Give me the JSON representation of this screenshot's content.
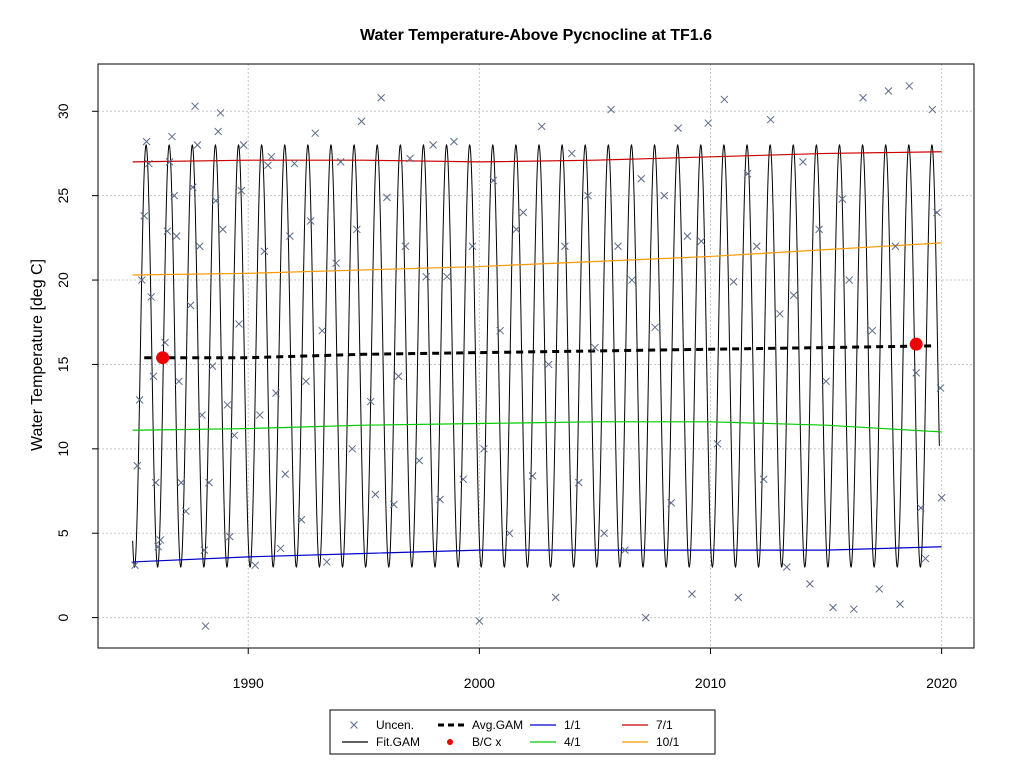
{
  "chart_data": {
    "type": "line",
    "title": "Water Temperature-Above Pycnocline at TF1.6",
    "xlabel": "",
    "ylabel": "Water Temperature [deg C]",
    "xlim": [
      1983.5,
      2021.4
    ],
    "ylim": [
      -1.8,
      32.8
    ],
    "x_ticks": [
      1990,
      2000,
      2010,
      2020
    ],
    "y_ticks": [
      0,
      5,
      10,
      15,
      20,
      25,
      30
    ],
    "grid": true,
    "legend_position": "bottom",
    "legend": [
      {
        "label": "Uncen.",
        "symbol": "cross",
        "color": "#5a6a8a"
      },
      {
        "label": "Fit.GAM",
        "symbol": "line",
        "color": "#000000"
      },
      {
        "label": "Avg.GAM",
        "symbol": "dashed-line",
        "color": "#000000"
      },
      {
        "label": "B/C x",
        "symbol": "dot",
        "color": "#ee0000"
      },
      {
        "label": "1/1",
        "symbol": "line",
        "color": "#0000cc"
      },
      {
        "label": "4/1",
        "symbol": "line",
        "color": "#00cc00"
      },
      {
        "label": "7/1",
        "symbol": "line",
        "color": "#cc0000"
      },
      {
        "label": "10/1",
        "symbol": "line",
        "color": "#ff9900"
      }
    ],
    "fit_gam": {
      "name": "Fit.GAM",
      "start_year": 1985.0,
      "end_year": 2019.9,
      "annual_max": 28.0,
      "annual_min": 3.0,
      "color": "#000000"
    },
    "series": [
      {
        "name": "1/1",
        "color": "#0000cc",
        "x": [
          1985.0,
          1990.0,
          1995.0,
          2000.0,
          2005.0,
          2010.0,
          2015.0,
          2020.0
        ],
        "values": [
          3.3,
          3.6,
          3.8,
          4.0,
          4.0,
          4.0,
          4.0,
          4.2
        ]
      },
      {
        "name": "4/1",
        "color": "#00cc00",
        "x": [
          1985.0,
          1990.0,
          1995.0,
          2000.0,
          2005.0,
          2010.0,
          2015.0,
          2020.0
        ],
        "values": [
          11.1,
          11.2,
          11.4,
          11.5,
          11.6,
          11.6,
          11.4,
          11.0
        ]
      },
      {
        "name": "7/1",
        "color": "#cc0000",
        "x": [
          1985.0,
          1990.0,
          1995.0,
          2000.0,
          2005.0,
          2010.0,
          2015.0,
          2020.0
        ],
        "values": [
          27.0,
          27.1,
          27.1,
          27.0,
          27.1,
          27.3,
          27.5,
          27.6
        ]
      },
      {
        "name": "10/1",
        "color": "#ff9900",
        "x": [
          1985.0,
          1990.0,
          1995.0,
          2000.0,
          2005.0,
          2010.0,
          2015.0,
          2020.0
        ],
        "values": [
          20.3,
          20.4,
          20.6,
          20.8,
          21.1,
          21.4,
          21.8,
          22.2
        ]
      },
      {
        "name": "Avg.GAM",
        "color": "#000000",
        "dashed": true,
        "x": [
          1985.5,
          1990.0,
          1995.0,
          2000.0,
          2005.0,
          2010.0,
          2015.0,
          2019.7
        ],
        "values": [
          15.4,
          15.4,
          15.6,
          15.7,
          15.8,
          15.9,
          16.0,
          16.1
        ]
      }
    ],
    "bc_points": [
      {
        "x": 1986.3,
        "y": 15.4
      },
      {
        "x": 2018.9,
        "y": 16.2
      }
    ],
    "uncensored_points": [
      [
        1985.1,
        3.1
      ],
      [
        1985.2,
        9.0
      ],
      [
        1985.3,
        12.9
      ],
      [
        1985.4,
        20.0
      ],
      [
        1985.5,
        23.8
      ],
      [
        1985.6,
        28.2
      ],
      [
        1985.7,
        26.9
      ],
      [
        1985.8,
        19.0
      ],
      [
        1985.9,
        14.3
      ],
      [
        1986.0,
        8.0
      ],
      [
        1986.1,
        4.2
      ],
      [
        1986.2,
        4.6
      ],
      [
        1986.4,
        16.3
      ],
      [
        1986.5,
        22.9
      ],
      [
        1986.6,
        27.0
      ],
      [
        1986.7,
        28.5
      ],
      [
        1986.8,
        25.0
      ],
      [
        1986.9,
        22.6
      ],
      [
        1987.0,
        14.0
      ],
      [
        1987.1,
        8.0
      ],
      [
        1987.3,
        6.3
      ],
      [
        1987.5,
        18.5
      ],
      [
        1987.6,
        25.5
      ],
      [
        1987.7,
        30.3
      ],
      [
        1987.8,
        28.0
      ],
      [
        1987.9,
        22.0
      ],
      [
        1988.0,
        12.0
      ],
      [
        1988.1,
        4.0
      ],
      [
        1988.15,
        -0.5
      ],
      [
        1988.3,
        8.0
      ],
      [
        1988.45,
        14.9
      ],
      [
        1988.6,
        24.7
      ],
      [
        1988.7,
        28.8
      ],
      [
        1988.8,
        29.9
      ],
      [
        1988.9,
        23.0
      ],
      [
        1989.1,
        12.6
      ],
      [
        1989.2,
        4.8
      ],
      [
        1989.4,
        10.8
      ],
      [
        1989.6,
        17.4
      ],
      [
        1989.7,
        25.3
      ],
      [
        1989.8,
        28.0
      ],
      [
        1990.3,
        3.1
      ],
      [
        1990.5,
        12.0
      ],
      [
        1990.7,
        21.7
      ],
      [
        1990.85,
        26.8
      ],
      [
        1991.0,
        27.3
      ],
      [
        1991.2,
        13.3
      ],
      [
        1991.4,
        4.1
      ],
      [
        1991.6,
        8.5
      ],
      [
        1991.8,
        22.6
      ],
      [
        1992.0,
        26.9
      ],
      [
        1992.3,
        5.8
      ],
      [
        1992.5,
        14.0
      ],
      [
        1992.7,
        23.5
      ],
      [
        1992.9,
        28.7
      ],
      [
        1993.2,
        17.0
      ],
      [
        1993.4,
        3.3
      ],
      [
        1993.8,
        21.0
      ],
      [
        1994.0,
        27.0
      ],
      [
        1994.5,
        10.0
      ],
      [
        1994.7,
        23.0
      ],
      [
        1994.9,
        29.4
      ],
      [
        1995.3,
        12.8
      ],
      [
        1995.5,
        7.3
      ],
      [
        1995.75,
        30.8
      ],
      [
        1996.0,
        24.9
      ],
      [
        1996.3,
        6.7
      ],
      [
        1996.5,
        14.3
      ],
      [
        1996.8,
        22.0
      ],
      [
        1997.0,
        27.2
      ],
      [
        1997.4,
        9.3
      ],
      [
        1997.7,
        20.2
      ],
      [
        1998.0,
        28.0
      ],
      [
        1998.3,
        7.0
      ],
      [
        1998.6,
        20.2
      ],
      [
        1998.9,
        28.2
      ],
      [
        1999.3,
        8.2
      ],
      [
        1999.7,
        22.0
      ],
      [
        2000.0,
        -0.2
      ],
      [
        2000.2,
        10.0
      ],
      [
        2000.6,
        25.9
      ],
      [
        2000.9,
        17.0
      ],
      [
        2001.3,
        5.0
      ],
      [
        2001.6,
        23.0
      ],
      [
        2001.9,
        24.0
      ],
      [
        2002.3,
        8.4
      ],
      [
        2002.7,
        29.1
      ],
      [
        2003.0,
        15.0
      ],
      [
        2003.3,
        1.2
      ],
      [
        2003.7,
        22.0
      ],
      [
        2004.0,
        27.5
      ],
      [
        2004.3,
        8.0
      ],
      [
        2004.7,
        25.0
      ],
      [
        2005.0,
        16.0
      ],
      [
        2005.4,
        5.0
      ],
      [
        2005.7,
        30.1
      ],
      [
        2006.0,
        22.0
      ],
      [
        2006.3,
        4.0
      ],
      [
        2006.6,
        20.0
      ],
      [
        2007.0,
        26.0
      ],
      [
        2007.2,
        0.0
      ],
      [
        2007.6,
        17.2
      ],
      [
        2008.0,
        25.0
      ],
      [
        2008.3,
        6.8
      ],
      [
        2008.6,
        29.0
      ],
      [
        2009.0,
        22.6
      ],
      [
        2009.2,
        1.4
      ],
      [
        2009.6,
        22.3
      ],
      [
        2009.9,
        29.3
      ],
      [
        2010.3,
        10.3
      ],
      [
        2010.6,
        30.7
      ],
      [
        2011.0,
        19.9
      ],
      [
        2011.2,
        1.2
      ],
      [
        2011.6,
        26.3
      ],
      [
        2012.0,
        22.0
      ],
      [
        2012.3,
        8.2
      ],
      [
        2012.6,
        29.5
      ],
      [
        2013.0,
        18.0
      ],
      [
        2013.3,
        3.0
      ],
      [
        2013.6,
        19.1
      ],
      [
        2014.0,
        27.0
      ],
      [
        2014.3,
        2.0
      ],
      [
        2014.7,
        23.0
      ],
      [
        2015.0,
        14.0
      ],
      [
        2015.3,
        0.6
      ],
      [
        2015.7,
        24.8
      ],
      [
        2016.0,
        20.0
      ],
      [
        2016.2,
        0.5
      ],
      [
        2016.6,
        30.8
      ],
      [
        2017.0,
        17.0
      ],
      [
        2017.3,
        1.7
      ],
      [
        2017.7,
        31.2
      ],
      [
        2018.0,
        22.0
      ],
      [
        2018.2,
        0.8
      ],
      [
        2018.6,
        31.5
      ],
      [
        2018.9,
        14.5
      ],
      [
        2019.1,
        6.5
      ],
      [
        2019.3,
        3.5
      ],
      [
        2019.6,
        30.1
      ],
      [
        2019.8,
        24.0
      ],
      [
        2019.95,
        13.6
      ],
      [
        2020.0,
        7.1
      ]
    ]
  }
}
